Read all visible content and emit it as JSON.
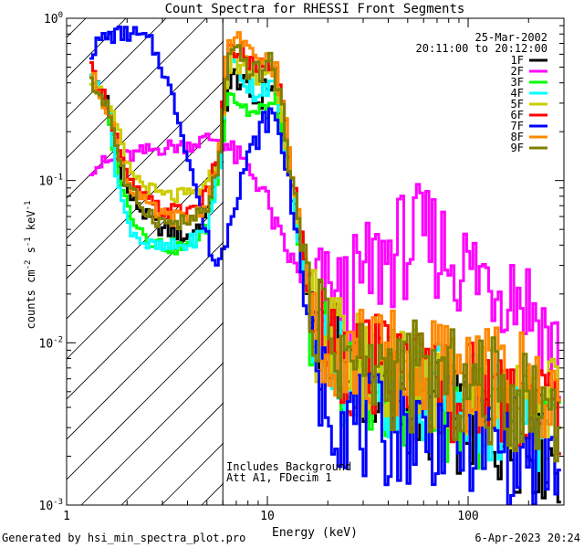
{
  "chart_data": {
    "type": "line",
    "title": "Count Spectra for RHESSI Front Segments",
    "xlabel": "Energy (keV)",
    "ylabel_parts": {
      "pre": "counts cm",
      "exp1": "-2",
      "mid1": " s",
      "exp2": "-1",
      "mid2": " keV",
      "exp3": "-1"
    },
    "xscale": "log",
    "yscale": "log",
    "xlim": [
      1,
      300
    ],
    "ylim": [
      0.001,
      1
    ],
    "x_ticks": [
      {
        "value": 1,
        "label": "1"
      },
      {
        "value": 10,
        "label": "10"
      },
      {
        "value": 100,
        "label": "100"
      }
    ],
    "y_ticks": [
      {
        "value": 1,
        "base": "10",
        "exp": "0"
      },
      {
        "value": 0.1,
        "base": "10",
        "exp": "-1"
      },
      {
        "value": 0.01,
        "base": "10",
        "exp": "-2"
      },
      {
        "value": 0.001,
        "base": "10",
        "exp": "-3"
      }
    ],
    "hatched_region": {
      "from": 1,
      "to": 6,
      "boundary_line": 6
    },
    "date": "25-Mar-2002",
    "time_range": "20:11:00 to 20:12:00",
    "annotations": [
      "Includes Background",
      "Att A1, FDecim 1"
    ],
    "legend_position": "top-right",
    "series": [
      {
        "name": "1F",
        "color": "#000000",
        "anchors": [
          [
            1.3,
            0.5
          ],
          [
            1.6,
            0.3
          ],
          [
            1.8,
            0.13
          ],
          [
            2.0,
            0.085
          ],
          [
            2.5,
            0.06
          ],
          [
            3.0,
            0.05
          ],
          [
            4.0,
            0.045
          ],
          [
            5.0,
            0.06
          ],
          [
            5.8,
            0.15
          ],
          [
            6.3,
            0.35
          ],
          [
            7.0,
            0.45
          ],
          [
            8.0,
            0.35
          ],
          [
            9.0,
            0.3
          ],
          [
            10,
            0.4
          ],
          [
            11,
            0.35
          ],
          [
            12,
            0.2
          ],
          [
            13,
            0.1
          ],
          [
            14,
            0.06
          ],
          [
            15,
            0.035
          ],
          [
            16,
            0.02
          ],
          [
            18,
            0.012
          ],
          [
            22,
            0.008
          ],
          [
            30,
            0.006
          ],
          [
            40,
            0.005
          ],
          [
            60,
            0.004
          ],
          [
            80,
            0.0035
          ],
          [
            120,
            0.003
          ],
          [
            200,
            0.0025
          ],
          [
            280,
            0.002
          ]
        ]
      },
      {
        "name": "2F",
        "color": "#ff00ff",
        "anchors": [
          [
            1.3,
            0.12
          ],
          [
            2,
            0.14
          ],
          [
            3,
            0.16
          ],
          [
            4,
            0.165
          ],
          [
            5,
            0.18
          ],
          [
            6,
            0.18
          ],
          [
            6.6,
            0.15
          ],
          [
            8,
            0.12
          ],
          [
            9.5,
            0.09
          ],
          [
            10.5,
            0.06
          ],
          [
            12,
            0.04
          ],
          [
            14,
            0.028
          ],
          [
            16,
            0.023
          ],
          [
            18,
            0.02
          ],
          [
            20,
            0.018
          ],
          [
            24,
            0.018
          ],
          [
            30,
            0.024
          ],
          [
            38,
            0.033
          ],
          [
            48,
            0.04
          ],
          [
            58,
            0.043
          ],
          [
            70,
            0.04
          ],
          [
            85,
            0.033
          ],
          [
            105,
            0.027
          ],
          [
            135,
            0.025
          ],
          [
            175,
            0.022
          ],
          [
            220,
            0.015
          ],
          [
            260,
            0.01
          ],
          [
            290,
            0.0075
          ]
        ]
      },
      {
        "name": "3F",
        "color": "#00ff00",
        "anchors": [
          [
            1.3,
            0.48
          ],
          [
            1.6,
            0.25
          ],
          [
            1.8,
            0.12
          ],
          [
            2.0,
            0.07
          ],
          [
            2.5,
            0.045
          ],
          [
            3.0,
            0.04
          ],
          [
            4.0,
            0.038
          ],
          [
            5.0,
            0.05
          ],
          [
            5.8,
            0.12
          ],
          [
            6.3,
            0.4
          ],
          [
            7.0,
            0.32
          ],
          [
            8.0,
            0.27
          ],
          [
            9.0,
            0.25
          ],
          [
            10,
            0.28
          ],
          [
            11,
            0.3
          ],
          [
            12,
            0.2
          ],
          [
            13,
            0.1
          ],
          [
            14,
            0.05
          ],
          [
            15,
            0.03
          ],
          [
            16,
            0.018
          ],
          [
            18,
            0.01
          ],
          [
            22,
            0.007
          ],
          [
            30,
            0.006
          ],
          [
            40,
            0.0055
          ],
          [
            60,
            0.0045
          ],
          [
            80,
            0.004
          ],
          [
            120,
            0.0035
          ],
          [
            200,
            0.003
          ],
          [
            280,
            0.0025
          ]
        ]
      },
      {
        "name": "4F",
        "color": "#00ffff",
        "anchors": [
          [
            1.3,
            0.5
          ],
          [
            1.6,
            0.3
          ],
          [
            1.8,
            0.1
          ],
          [
            2.0,
            0.055
          ],
          [
            2.5,
            0.04
          ],
          [
            3.0,
            0.038
          ],
          [
            4.0,
            0.04
          ],
          [
            5.0,
            0.05
          ],
          [
            5.8,
            0.12
          ],
          [
            6.3,
            0.55
          ],
          [
            7.0,
            0.5
          ],
          [
            8.0,
            0.4
          ],
          [
            9.0,
            0.35
          ],
          [
            10,
            0.4
          ],
          [
            11,
            0.35
          ],
          [
            12,
            0.22
          ],
          [
            13,
            0.11
          ],
          [
            14,
            0.055
          ],
          [
            15,
            0.03
          ],
          [
            16,
            0.018
          ],
          [
            18,
            0.011
          ],
          [
            22,
            0.008
          ],
          [
            30,
            0.006
          ],
          [
            40,
            0.0055
          ],
          [
            60,
            0.005
          ],
          [
            80,
            0.0045
          ],
          [
            120,
            0.004
          ],
          [
            200,
            0.0035
          ],
          [
            280,
            0.003
          ]
        ]
      },
      {
        "name": "5F",
        "color": "#cccc00",
        "anchors": [
          [
            1.3,
            0.45
          ],
          [
            1.6,
            0.3
          ],
          [
            1.8,
            0.2
          ],
          [
            2.0,
            0.12
          ],
          [
            2.5,
            0.09
          ],
          [
            3.0,
            0.08
          ],
          [
            4.0,
            0.08
          ],
          [
            5.0,
            0.09
          ],
          [
            5.8,
            0.15
          ],
          [
            6.3,
            0.5
          ],
          [
            7.0,
            0.55
          ],
          [
            8.0,
            0.5
          ],
          [
            9.0,
            0.4
          ],
          [
            10,
            0.5
          ],
          [
            11,
            0.45
          ],
          [
            12,
            0.25
          ],
          [
            13,
            0.12
          ],
          [
            14,
            0.06
          ],
          [
            15,
            0.035
          ],
          [
            16,
            0.02
          ],
          [
            18,
            0.012
          ],
          [
            22,
            0.009
          ],
          [
            30,
            0.007
          ],
          [
            40,
            0.0065
          ],
          [
            60,
            0.006
          ],
          [
            80,
            0.0055
          ],
          [
            120,
            0.005
          ],
          [
            200,
            0.0045
          ],
          [
            280,
            0.004
          ]
        ]
      },
      {
        "name": "6F",
        "color": "#ff0000",
        "anchors": [
          [
            1.3,
            0.5
          ],
          [
            1.6,
            0.3
          ],
          [
            1.8,
            0.17
          ],
          [
            2.0,
            0.1
          ],
          [
            2.5,
            0.075
          ],
          [
            3.0,
            0.065
          ],
          [
            4.0,
            0.065
          ],
          [
            5.0,
            0.08
          ],
          [
            5.8,
            0.16
          ],
          [
            6.3,
            0.55
          ],
          [
            7.0,
            0.65
          ],
          [
            8.0,
            0.55
          ],
          [
            9.0,
            0.45
          ],
          [
            10,
            0.55
          ],
          [
            11,
            0.5
          ],
          [
            12,
            0.28
          ],
          [
            13,
            0.13
          ],
          [
            14,
            0.07
          ],
          [
            15,
            0.04
          ],
          [
            16,
            0.022
          ],
          [
            18,
            0.013
          ],
          [
            22,
            0.009
          ],
          [
            30,
            0.007
          ],
          [
            40,
            0.0065
          ],
          [
            60,
            0.006
          ],
          [
            80,
            0.0055
          ],
          [
            120,
            0.005
          ],
          [
            200,
            0.0045
          ],
          [
            280,
            0.004
          ]
        ]
      },
      {
        "name": "7F",
        "color": "#0000ff",
        "anchors": [
          [
            1.3,
            0.6
          ],
          [
            1.5,
            0.75
          ],
          [
            1.8,
            0.8
          ],
          [
            2.2,
            0.8
          ],
          [
            2.6,
            0.72
          ],
          [
            3.0,
            0.5
          ],
          [
            3.5,
            0.28
          ],
          [
            4.0,
            0.15
          ],
          [
            4.5,
            0.08
          ],
          [
            5.0,
            0.045
          ],
          [
            5.5,
            0.03
          ],
          [
            6.0,
            0.035
          ],
          [
            6.5,
            0.06
          ],
          [
            7.5,
            0.11
          ],
          [
            8.5,
            0.16
          ],
          [
            9.5,
            0.22
          ],
          [
            10.5,
            0.26
          ],
          [
            11.5,
            0.2
          ],
          [
            12.5,
            0.12
          ],
          [
            14,
            0.05
          ],
          [
            15,
            0.025
          ],
          [
            16,
            0.012
          ],
          [
            18,
            0.006
          ],
          [
            22,
            0.004
          ],
          [
            30,
            0.003
          ],
          [
            40,
            0.0028
          ],
          [
            60,
            0.003
          ],
          [
            80,
            0.0028
          ],
          [
            120,
            0.0025
          ],
          [
            200,
            0.002
          ],
          [
            280,
            0.0018
          ]
        ]
      },
      {
        "name": "8F",
        "color": "#ff8800",
        "anchors": [
          [
            1.3,
            0.47
          ],
          [
            1.6,
            0.28
          ],
          [
            1.8,
            0.16
          ],
          [
            2.0,
            0.1
          ],
          [
            2.5,
            0.07
          ],
          [
            3.0,
            0.06
          ],
          [
            4.0,
            0.058
          ],
          [
            5.0,
            0.07
          ],
          [
            5.8,
            0.15
          ],
          [
            6.3,
            0.6
          ],
          [
            7.0,
            0.8
          ],
          [
            8.0,
            0.6
          ],
          [
            9.0,
            0.5
          ],
          [
            10,
            0.6
          ],
          [
            11,
            0.5
          ],
          [
            12,
            0.28
          ],
          [
            13,
            0.13
          ],
          [
            14,
            0.07
          ],
          [
            15,
            0.04
          ],
          [
            16,
            0.022
          ],
          [
            18,
            0.013
          ],
          [
            22,
            0.01
          ],
          [
            30,
            0.008
          ],
          [
            40,
            0.0075
          ],
          [
            60,
            0.007
          ],
          [
            80,
            0.0065
          ],
          [
            120,
            0.006
          ],
          [
            200,
            0.0055
          ],
          [
            280,
            0.005
          ]
        ]
      },
      {
        "name": "9F",
        "color": "#808000",
        "anchors": [
          [
            1.3,
            0.4
          ],
          [
            1.6,
            0.3
          ],
          [
            1.8,
            0.15
          ],
          [
            2.0,
            0.09
          ],
          [
            2.5,
            0.065
          ],
          [
            3.0,
            0.055
          ],
          [
            4.0,
            0.055
          ],
          [
            5.0,
            0.065
          ],
          [
            5.8,
            0.14
          ],
          [
            6.3,
            0.5
          ],
          [
            7.0,
            0.6
          ],
          [
            8.0,
            0.5
          ],
          [
            9.0,
            0.45
          ],
          [
            10,
            0.55
          ],
          [
            11,
            0.45
          ],
          [
            12,
            0.25
          ],
          [
            13,
            0.12
          ],
          [
            14,
            0.065
          ],
          [
            15,
            0.04
          ],
          [
            16,
            0.025
          ],
          [
            18,
            0.015
          ],
          [
            22,
            0.009
          ],
          [
            30,
            0.007
          ],
          [
            40,
            0.0065
          ],
          [
            60,
            0.006
          ],
          [
            80,
            0.0055
          ],
          [
            120,
            0.005
          ],
          [
            200,
            0.0045
          ],
          [
            280,
            0.004
          ]
        ]
      }
    ]
  },
  "footer": {
    "generated_by": "Generated by hsi_min_spectra_plot.pro",
    "timestamp": "6-Apr-2023 20:24"
  }
}
